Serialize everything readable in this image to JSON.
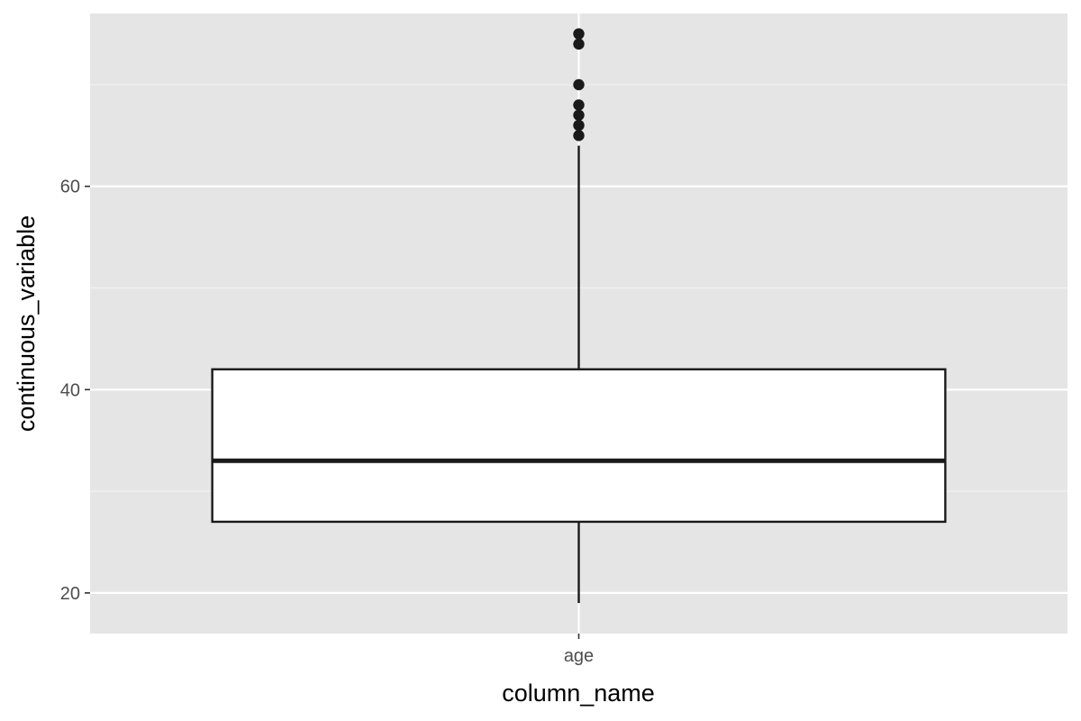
{
  "chart_data": {
    "type": "boxplot",
    "title": "",
    "xlabel": "column_name",
    "ylabel": "continuous_variable",
    "categories": [
      "age"
    ],
    "ylim": [
      16,
      77
    ],
    "yticks": [
      20,
      40,
      60
    ],
    "grid": true,
    "legend": "none",
    "boxes": [
      {
        "category": "age",
        "min": 19,
        "q1": 27,
        "median": 33,
        "q3": 42,
        "whisker_high": 64,
        "outliers": [
          65,
          66,
          67,
          68,
          70,
          74,
          75
        ]
      }
    ]
  },
  "colors": {
    "panel_background": "#e5e5e5",
    "grid_major": "#ffffff",
    "grid_minor": "#f2f2f2",
    "box_fill": "#ffffff",
    "box_line": "#1a1a1a",
    "outlier_point": "#1a1a1a",
    "tick_text": "#4d4d4d",
    "axis_title_text": "#000000"
  }
}
